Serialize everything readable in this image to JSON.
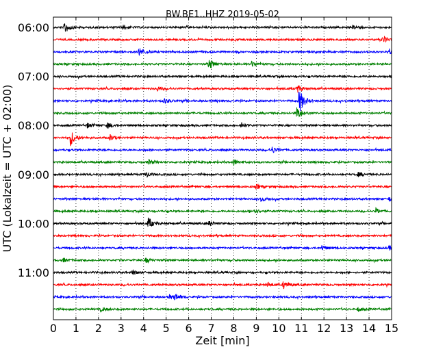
{
  "chart_data": {
    "type": "line",
    "chart_kind": "seismogram helicorder",
    "title": "BW.BE1..HHZ 2019-05-02",
    "xlabel": "Zeit  [min]",
    "ylabel": "UTC (Lokalzeit = UTC + 02:00)",
    "xlim": [
      0,
      15
    ],
    "x_ticks": [
      0,
      1,
      2,
      3,
      4,
      5,
      6,
      7,
      8,
      9,
      10,
      11,
      12,
      13,
      14,
      15
    ],
    "x_tick_labels": [
      "0",
      "1",
      "2",
      "3",
      "4",
      "5",
      "6",
      "7",
      "8",
      "9",
      "10",
      "11",
      "12",
      "13",
      "14",
      "15"
    ],
    "vertical_grid": "dotted at each minute",
    "trace_start": "06:00",
    "trace_interval_minutes": 15,
    "y_tick_labels": [
      {
        "label": "06:00",
        "trace": 0
      },
      {
        "label": "07:00",
        "trace": 4
      },
      {
        "label": "08:00",
        "trace": 8
      },
      {
        "label": "09:00",
        "trace": 12
      },
      {
        "label": "10:00",
        "trace": 16
      },
      {
        "label": "11:00",
        "trace": 20
      }
    ],
    "color_cycle": [
      "#000000",
      "#ff0000",
      "#0000ff",
      "#008000"
    ],
    "traces": [
      {
        "row": 0,
        "events": [
          [
            0.5,
            0.9
          ],
          [
            3.1,
            0.35
          ],
          [
            13.3,
            0.3
          ]
        ]
      },
      {
        "row": 1,
        "events": [
          [
            14.6,
            0.45
          ]
        ]
      },
      {
        "row": 2,
        "events": [
          [
            3.8,
            0.65
          ],
          [
            14.9,
            0.4
          ]
        ]
      },
      {
        "row": 3,
        "events": [
          [
            6.9,
            0.9
          ],
          [
            8.8,
            0.4
          ]
        ]
      },
      {
        "row": 4,
        "events": []
      },
      {
        "row": 5,
        "events": [
          [
            4.6,
            0.35
          ],
          [
            10.8,
            0.6
          ]
        ]
      },
      {
        "row": 6,
        "events": [
          [
            4.9,
            0.4
          ],
          [
            10.9,
            1.9
          ]
        ]
      },
      {
        "row": 7,
        "events": [
          [
            10.8,
            1.0
          ]
        ]
      },
      {
        "row": 8,
        "events": [
          [
            1.5,
            0.35
          ],
          [
            2.4,
            0.45
          ],
          [
            8.3,
            0.4
          ]
        ]
      },
      {
        "row": 9,
        "events": [
          [
            0.75,
            1.2
          ],
          [
            2.5,
            0.45
          ]
        ]
      },
      {
        "row": 10,
        "events": [
          [
            9.7,
            0.45
          ]
        ]
      },
      {
        "row": 11,
        "events": [
          [
            4.2,
            0.4
          ],
          [
            8.0,
            0.45
          ]
        ]
      },
      {
        "row": 12,
        "events": [
          [
            4.1,
            0.4
          ],
          [
            13.5,
            0.3
          ]
        ]
      },
      {
        "row": 13,
        "events": [
          [
            9.0,
            0.35
          ]
        ]
      },
      {
        "row": 14,
        "events": [
          [
            9.2,
            0.35
          ],
          [
            14.9,
            0.35
          ]
        ]
      },
      {
        "row": 15,
        "events": [
          [
            8.9,
            0.35
          ],
          [
            14.3,
            0.4
          ]
        ]
      },
      {
        "row": 16,
        "events": [
          [
            4.2,
            0.8
          ],
          [
            6.9,
            0.3
          ]
        ]
      },
      {
        "row": 17,
        "events": []
      },
      {
        "row": 18,
        "events": [
          [
            11.9,
            0.35
          ],
          [
            14.9,
            0.35
          ]
        ]
      },
      {
        "row": 19,
        "events": [
          [
            4.1,
            0.35
          ],
          [
            0.4,
            0.3
          ]
        ]
      },
      {
        "row": 20,
        "events": [
          [
            3.5,
            0.35
          ]
        ]
      },
      {
        "row": 21,
        "events": [
          [
            10.2,
            0.6
          ],
          [
            9.5,
            0.3
          ]
        ]
      },
      {
        "row": 22,
        "events": [
          [
            5.4,
            0.45
          ],
          [
            5.1,
            0.3
          ]
        ]
      },
      {
        "row": 23,
        "events": [
          [
            2.1,
            0.3
          ],
          [
            13.5,
            0.3
          ]
        ]
      }
    ]
  }
}
